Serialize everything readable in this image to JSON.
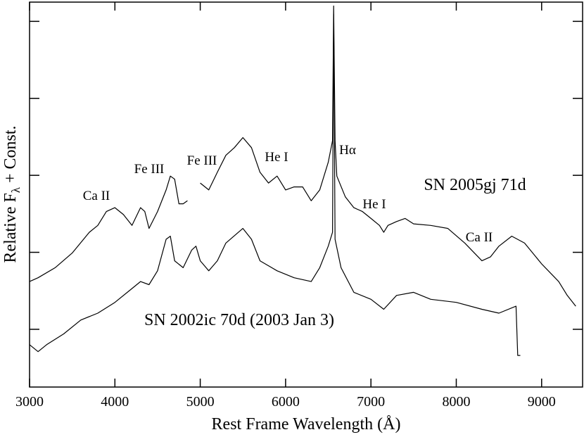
{
  "chart_data": {
    "type": "line",
    "x_label": "Rest Frame Wavelength (Å)",
    "y_label": {
      "main": "Relative F",
      "sub": "λ",
      "rest": " + Const."
    },
    "xlim": [
      3000,
      9480
    ],
    "xticks": [
      3000,
      4000,
      5000,
      6000,
      7000,
      8000,
      9000
    ],
    "ylim": [
      -0.75,
      4.25
    ],
    "yticks": [
      0,
      1,
      2,
      3,
      4
    ],
    "annotations": [
      "Ca II",
      "Fe III",
      "Fe III",
      "He I",
      "Hα",
      "He I",
      "Ca II",
      "SN 2005gj 71d",
      "SN 2002ic 70d (2003 Jan 3)"
    ],
    "series": [
      {
        "name": "SN 2005gj 71d",
        "color": "#000000",
        "x": [
          3000,
          3100,
          3300,
          3500,
          3700,
          3800,
          3900,
          4000,
          4100,
          4200,
          4300,
          4350,
          4400,
          4500,
          4600,
          4650,
          4700,
          4750,
          4800,
          4850,
          4900,
          5000,
          5100,
          5200,
          5300,
          5400,
          5500,
          5600,
          5700,
          5800,
          5900,
          6000,
          6100,
          6200,
          6300,
          6400,
          6500,
          6550,
          6563,
          6580,
          6600,
          6700,
          6800,
          6900,
          7000,
          7100,
          7150,
          7200,
          7300,
          7400,
          7500,
          7700,
          7900,
          8100,
          8300,
          8400,
          8500,
          8650,
          8800,
          9000,
          9200,
          9300,
          9400
        ],
        "values": [
          0.62,
          0.67,
          0.8,
          0.99,
          1.26,
          1.35,
          1.53,
          1.58,
          1.49,
          1.35,
          1.58,
          1.53,
          1.31,
          1.53,
          1.81,
          1.99,
          1.95,
          1.63,
          1.63,
          1.67,
          null,
          1.9,
          1.81,
          2.04,
          2.26,
          2.36,
          2.49,
          2.36,
          2.04,
          1.9,
          1.99,
          1.81,
          1.85,
          1.85,
          1.67,
          1.81,
          2.17,
          2.45,
          4.2,
          2.45,
          1.99,
          1.72,
          1.58,
          1.53,
          1.44,
          1.35,
          1.26,
          1.35,
          1.4,
          1.44,
          1.37,
          1.35,
          1.31,
          1.12,
          0.89,
          0.94,
          1.08,
          1.21,
          1.12,
          0.85,
          0.62,
          0.44,
          0.3
        ]
      },
      {
        "name": "SN 2002ic 70d (2003 Jan 3)",
        "color": "#000000",
        "x": [
          3000,
          3100,
          3200,
          3400,
          3600,
          3800,
          4000,
          4200,
          4300,
          4400,
          4500,
          4600,
          4650,
          4700,
          4800,
          4900,
          4950,
          5000,
          5100,
          5200,
          5300,
          5500,
          5600,
          5700,
          5900,
          6100,
          6300,
          6400,
          6500,
          6550,
          6563,
          6580,
          6650,
          6800,
          7000,
          7150,
          7300,
          7500,
          7700,
          8000,
          8300,
          8500,
          8700,
          8720,
          8750
        ],
        "values": [
          -0.2,
          -0.29,
          -0.2,
          -0.06,
          0.12,
          0.21,
          0.35,
          0.53,
          0.62,
          0.58,
          0.76,
          1.17,
          1.21,
          0.89,
          0.8,
          1.03,
          1.08,
          0.89,
          0.76,
          0.89,
          1.12,
          1.31,
          1.17,
          0.89,
          0.76,
          0.67,
          0.62,
          0.8,
          1.08,
          1.26,
          4.09,
          1.17,
          0.8,
          0.48,
          0.39,
          0.26,
          0.44,
          0.48,
          0.39,
          0.35,
          0.26,
          0.21,
          0.3,
          -0.34,
          -0.34
        ]
      }
    ]
  }
}
